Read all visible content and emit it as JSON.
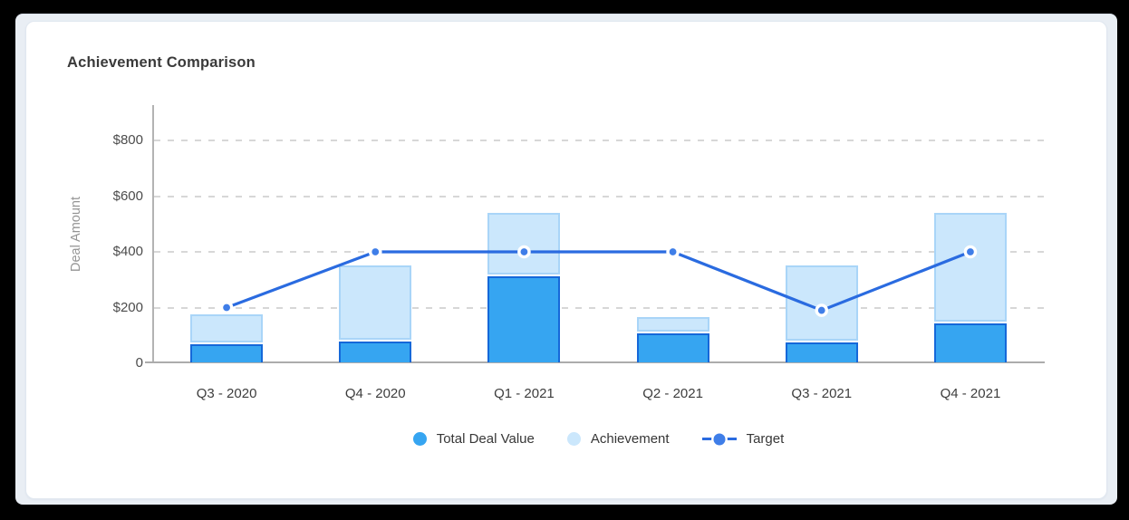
{
  "card": {
    "heading": "Achievement Comparison"
  },
  "chart_data": {
    "type": "bar",
    "subtype": "stacked bars with target line overlay",
    "title": "Achievement Comparison",
    "xlabel": "",
    "ylabel": "Deal Amount",
    "categories": [
      "Q3 - 2020",
      "Q4 - 2020",
      "Q1 - 2021",
      "Q2 - 2021",
      "Q3 - 2021",
      "Q4 - 2021"
    ],
    "series": [
      {
        "name": "Total Deal Value",
        "type": "bar",
        "stacked": true,
        "color": "#36A5F1",
        "border_color": "#1568D9",
        "values": [
          65,
          75,
          310,
          105,
          70,
          140
        ]
      },
      {
        "name": "Achievement",
        "type": "bar",
        "stacked": true,
        "stacked_on": "Total Deal Value",
        "color": "#CBE7FC",
        "border_color": "#A9D5F8",
        "values": [
          110,
          275,
          230,
          60,
          280,
          400
        ],
        "stack_top_totals": [
          175,
          350,
          540,
          165,
          350,
          540
        ]
      },
      {
        "name": "Target",
        "type": "line",
        "color": "#2A6BE0",
        "marker_color": "#3F7EE8",
        "marker_ring": "#FFFFFF",
        "values": [
          200,
          400,
          400,
          400,
          190,
          400
        ]
      }
    ],
    "y_ticks": [
      {
        "value": 800,
        "label": "$800"
      },
      {
        "value": 600,
        "label": "$600"
      },
      {
        "value": 400,
        "label": "$400"
      },
      {
        "value": 200,
        "label": "$200"
      },
      {
        "value": 0,
        "label": "0"
      }
    ],
    "ylim": [
      0,
      925
    ],
    "grid": "horizontal dashed",
    "legend_position": "bottom-center"
  },
  "legend": {
    "items": [
      {
        "label": "Total Deal Value",
        "icon": "dot"
      },
      {
        "label": "Achievement",
        "icon": "dot"
      },
      {
        "label": "Target",
        "icon": "line-dot"
      }
    ]
  }
}
